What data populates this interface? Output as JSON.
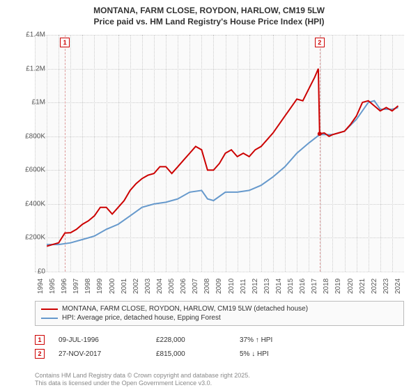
{
  "title_line1": "MONTANA, FARM CLOSE, ROYDON, HARLOW, CM19 5LW",
  "title_line2": "Price paid vs. HM Land Registry's House Price Index (HPI)",
  "chart": {
    "type": "line",
    "background_color": "#fafafa",
    "grid_color": "#cccccc",
    "xlim": [
      1994,
      2025
    ],
    "ylim": [
      0,
      1400000
    ],
    "ytick_step": 200000,
    "y_ticks": [
      {
        "v": 0,
        "label": "£0"
      },
      {
        "v": 200000,
        "label": "£200K"
      },
      {
        "v": 400000,
        "label": "£400K"
      },
      {
        "v": 600000,
        "label": "£600K"
      },
      {
        "v": 800000,
        "label": "£800K"
      },
      {
        "v": 1000000,
        "label": "£1M"
      },
      {
        "v": 1200000,
        "label": "£1.2M"
      },
      {
        "v": 1400000,
        "label": "£1.4M"
      }
    ],
    "x_ticks": [
      1994,
      1995,
      1996,
      1997,
      1998,
      1999,
      2000,
      2001,
      2002,
      2003,
      2004,
      2005,
      2006,
      2007,
      2008,
      2009,
      2010,
      2011,
      2012,
      2013,
      2014,
      2015,
      2016,
      2017,
      2018,
      2019,
      2020,
      2021,
      2022,
      2023,
      2024
    ],
    "series": [
      {
        "name": "MONTANA, FARM CLOSE, ROYDON, HARLOW, CM19 5LW (detached house)",
        "color": "#cc0000",
        "line_width": 2,
        "data": [
          [
            1995.0,
            150000
          ],
          [
            1995.5,
            160000
          ],
          [
            1996.0,
            170000
          ],
          [
            1996.52,
            228000
          ],
          [
            1997.0,
            230000
          ],
          [
            1997.5,
            250000
          ],
          [
            1998.0,
            280000
          ],
          [
            1998.5,
            300000
          ],
          [
            1999.0,
            330000
          ],
          [
            1999.5,
            380000
          ],
          [
            2000.0,
            380000
          ],
          [
            2000.5,
            340000
          ],
          [
            2001.0,
            380000
          ],
          [
            2001.5,
            420000
          ],
          [
            2002.0,
            480000
          ],
          [
            2002.5,
            520000
          ],
          [
            2003.0,
            550000
          ],
          [
            2003.5,
            570000
          ],
          [
            2004.0,
            580000
          ],
          [
            2004.5,
            620000
          ],
          [
            2005.0,
            620000
          ],
          [
            2005.5,
            580000
          ],
          [
            2006.0,
            620000
          ],
          [
            2006.5,
            660000
          ],
          [
            2007.0,
            700000
          ],
          [
            2007.5,
            740000
          ],
          [
            2008.0,
            720000
          ],
          [
            2008.5,
            600000
          ],
          [
            2009.0,
            600000
          ],
          [
            2009.5,
            640000
          ],
          [
            2010.0,
            700000
          ],
          [
            2010.5,
            720000
          ],
          [
            2011.0,
            680000
          ],
          [
            2011.5,
            700000
          ],
          [
            2012.0,
            680000
          ],
          [
            2012.5,
            720000
          ],
          [
            2013.0,
            740000
          ],
          [
            2013.5,
            780000
          ],
          [
            2014.0,
            820000
          ],
          [
            2014.5,
            870000
          ],
          [
            2015.0,
            920000
          ],
          [
            2015.5,
            970000
          ],
          [
            2016.0,
            1020000
          ],
          [
            2016.5,
            1010000
          ],
          [
            2017.0,
            1080000
          ],
          [
            2017.5,
            1150000
          ],
          [
            2017.8,
            1200000
          ],
          [
            2017.91,
            815000
          ],
          [
            2018.3,
            820000
          ],
          [
            2018.7,
            800000
          ],
          [
            2019.0,
            810000
          ],
          [
            2019.5,
            820000
          ],
          [
            2020.0,
            830000
          ],
          [
            2020.5,
            870000
          ],
          [
            2021.0,
            920000
          ],
          [
            2021.5,
            1000000
          ],
          [
            2022.0,
            1010000
          ],
          [
            2022.5,
            980000
          ],
          [
            2023.0,
            950000
          ],
          [
            2023.5,
            970000
          ],
          [
            2024.0,
            950000
          ],
          [
            2024.5,
            980000
          ]
        ]
      },
      {
        "name": "HPI: Average price, detached house, Epping Forest",
        "color": "#6699cc",
        "line_width": 2,
        "data": [
          [
            1995.0,
            160000
          ],
          [
            1996.0,
            160000
          ],
          [
            1997.0,
            170000
          ],
          [
            1998.0,
            190000
          ],
          [
            1999.0,
            210000
          ],
          [
            2000.0,
            250000
          ],
          [
            2001.0,
            280000
          ],
          [
            2002.0,
            330000
          ],
          [
            2003.0,
            380000
          ],
          [
            2004.0,
            400000
          ],
          [
            2005.0,
            410000
          ],
          [
            2006.0,
            430000
          ],
          [
            2007.0,
            470000
          ],
          [
            2008.0,
            480000
          ],
          [
            2008.5,
            430000
          ],
          [
            2009.0,
            420000
          ],
          [
            2010.0,
            470000
          ],
          [
            2011.0,
            470000
          ],
          [
            2012.0,
            480000
          ],
          [
            2013.0,
            510000
          ],
          [
            2014.0,
            560000
          ],
          [
            2015.0,
            620000
          ],
          [
            2016.0,
            700000
          ],
          [
            2017.0,
            760000
          ],
          [
            2017.91,
            810000
          ],
          [
            2018.5,
            810000
          ],
          [
            2019.0,
            810000
          ],
          [
            2020.0,
            830000
          ],
          [
            2021.0,
            900000
          ],
          [
            2022.0,
            1000000
          ],
          [
            2022.5,
            1010000
          ],
          [
            2023.0,
            960000
          ],
          [
            2024.0,
            960000
          ],
          [
            2024.5,
            970000
          ]
        ]
      }
    ],
    "markers": [
      {
        "id": "1",
        "x": 1996.52,
        "date": "09-JUL-1996",
        "price": "£228,000",
        "delta": "37% ↑ HPI"
      },
      {
        "id": "2",
        "x": 2017.91,
        "date": "27-NOV-2017",
        "price": "£815,000",
        "delta": "5% ↓ HPI"
      }
    ],
    "marker_box_color": "#cc0000",
    "marker_line_color": "#dd9999"
  },
  "legend": {
    "items": [
      {
        "color": "#cc0000",
        "label": "MONTANA, FARM CLOSE, ROYDON, HARLOW, CM19 5LW (detached house)"
      },
      {
        "color": "#6699cc",
        "label": "HPI: Average price, detached house, Epping Forest"
      }
    ]
  },
  "footer_line1": "Contains HM Land Registry data © Crown copyright and database right 2025.",
  "footer_line2": "This data is licensed under the Open Government Licence v3.0."
}
